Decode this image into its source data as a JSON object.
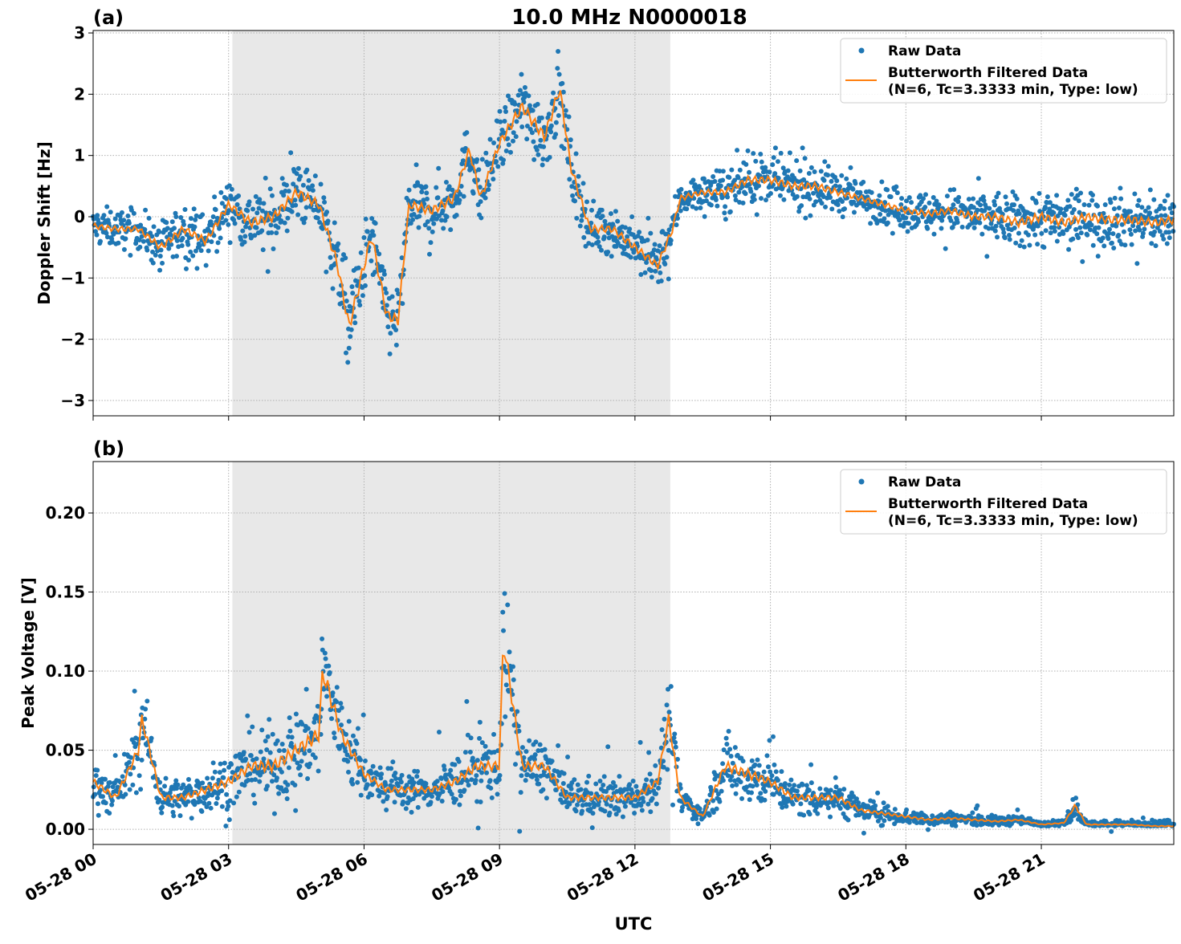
{
  "title": "10.0 MHz N0000018",
  "xlabel": "UTC",
  "x_tick_labels": [
    "05-28 00",
    "05-28 03",
    "05-28 06",
    "05-28 09",
    "05-28 12",
    "05-28 15",
    "05-28 18",
    "05-28 21"
  ],
  "shaded_interval": [
    "03:05",
    "12:47"
  ],
  "colors": {
    "raw": "#1f77b4",
    "filtered": "#ff7f0e",
    "shade": "#e8e8e8"
  },
  "legend": {
    "raw": "Raw Data",
    "filtered_line1": "Butterworth Filtered Data",
    "filtered_line2": "(N=6, Tc=3.3333 min, Type: low)",
    "placement": "upper-right"
  },
  "chart_data": [
    {
      "type": "scatter+line",
      "panel_label": "(a)",
      "ylabel": "Doppler Shift [Hz]",
      "xlim": [
        "00:00",
        "23:56"
      ],
      "ylim": [
        -3.25,
        3.04
      ],
      "y_ticks": [
        -3,
        -2,
        -1,
        0,
        1,
        2,
        3
      ],
      "y_tick_labels": [
        "−3",
        "−2",
        "−1",
        "0",
        "1",
        "2",
        "3"
      ],
      "grid": true,
      "x": [
        "00:00",
        "00:30",
        "01:00",
        "01:30",
        "02:00",
        "02:30",
        "03:00",
        "03:30",
        "04:00",
        "04:30",
        "05:00",
        "05:25",
        "05:40",
        "06:10",
        "06:30",
        "06:45",
        "07:00",
        "07:30",
        "08:00",
        "08:20",
        "08:35",
        "09:00",
        "09:30",
        "10:00",
        "10:20",
        "10:35",
        "11:00",
        "11:30",
        "12:00",
        "12:30",
        "12:50",
        "13:00",
        "13:30",
        "14:00",
        "14:30",
        "15:00",
        "15:30",
        "16:00",
        "16:30",
        "17:00",
        "17:30",
        "18:00",
        "18:30",
        "19:00",
        "19:30",
        "20:00",
        "20:30",
        "21:00",
        "21:30",
        "22:00",
        "22:30",
        "23:00",
        "23:30",
        "23:56"
      ],
      "filtered": [
        -0.15,
        -0.2,
        -0.2,
        -0.5,
        -0.2,
        -0.4,
        0.2,
        -0.1,
        0.0,
        0.4,
        0.2,
        -0.8,
        -1.8,
        -0.3,
        -1.6,
        -1.7,
        0.2,
        0.1,
        0.3,
        1.1,
        0.3,
        1.2,
        1.8,
        1.3,
        2.1,
        0.8,
        -0.2,
        -0.2,
        -0.5,
        -0.8,
        -0.2,
        0.3,
        0.4,
        0.4,
        0.6,
        0.6,
        0.5,
        0.5,
        0.4,
        0.3,
        0.2,
        0.1,
        0.05,
        0.1,
        0.0,
        0.0,
        -0.1,
        0.0,
        -0.1,
        0.0,
        -0.05,
        -0.05,
        -0.1,
        -0.05
      ],
      "raw_spread": [
        0.3,
        0.3,
        0.3,
        0.4,
        0.4,
        0.4,
        0.4,
        0.5,
        0.5,
        0.5,
        0.5,
        0.6,
        0.7,
        0.6,
        0.6,
        0.6,
        0.5,
        0.5,
        0.5,
        0.5,
        0.5,
        0.5,
        0.6,
        0.6,
        0.6,
        0.5,
        0.4,
        0.4,
        0.4,
        0.4,
        0.4,
        0.3,
        0.3,
        0.35,
        0.4,
        0.4,
        0.4,
        0.4,
        0.35,
        0.3,
        0.3,
        0.3,
        0.35,
        0.35,
        0.4,
        0.4,
        0.45,
        0.5,
        0.45,
        0.45,
        0.45,
        0.45,
        0.45,
        0.45
      ]
    },
    {
      "type": "scatter+line",
      "panel_label": "(b)",
      "ylabel": "Peak Voltage [V]",
      "xlim": [
        "00:00",
        "23:56"
      ],
      "ylim": [
        -0.0096,
        0.2325
      ],
      "y_ticks": [
        0,
        0.05,
        0.1,
        0.15,
        0.2
      ],
      "y_tick_labels": [
        "0.00",
        "0.05",
        "0.10",
        "0.15",
        "0.20"
      ],
      "grid": true,
      "x": [
        "00:00",
        "00:30",
        "01:00",
        "01:05",
        "01:30",
        "02:00",
        "02:30",
        "03:00",
        "03:30",
        "04:00",
        "04:30",
        "05:00",
        "05:05",
        "05:30",
        "06:00",
        "06:30",
        "07:00",
        "07:30",
        "08:00",
        "08:30",
        "09:00",
        "09:05",
        "09:30",
        "10:00",
        "10:30",
        "11:00",
        "11:30",
        "12:00",
        "12:30",
        "12:45",
        "13:00",
        "13:30",
        "14:00",
        "14:30",
        "15:00",
        "15:30",
        "16:00",
        "16:30",
        "17:00",
        "17:30",
        "18:00",
        "18:30",
        "19:00",
        "19:30",
        "20:00",
        "20:30",
        "21:00",
        "21:30",
        "21:45",
        "22:00",
        "22:30",
        "23:00",
        "23:30",
        "23:56"
      ],
      "filtered": [
        0.03,
        0.02,
        0.05,
        0.07,
        0.02,
        0.02,
        0.025,
        0.03,
        0.04,
        0.04,
        0.05,
        0.06,
        0.1,
        0.06,
        0.035,
        0.025,
        0.025,
        0.025,
        0.03,
        0.04,
        0.04,
        0.12,
        0.04,
        0.04,
        0.02,
        0.02,
        0.02,
        0.02,
        0.03,
        0.07,
        0.02,
        0.008,
        0.04,
        0.035,
        0.03,
        0.02,
        0.02,
        0.02,
        0.012,
        0.01,
        0.008,
        0.006,
        0.007,
        0.006,
        0.005,
        0.006,
        0.003,
        0.004,
        0.015,
        0.003,
        0.003,
        0.003,
        0.002,
        0.002
      ],
      "raw_spread": [
        0.015,
        0.012,
        0.02,
        0.025,
        0.012,
        0.012,
        0.015,
        0.018,
        0.02,
        0.025,
        0.025,
        0.03,
        0.04,
        0.025,
        0.015,
        0.012,
        0.012,
        0.012,
        0.015,
        0.02,
        0.02,
        0.04,
        0.018,
        0.018,
        0.012,
        0.012,
        0.012,
        0.012,
        0.015,
        0.025,
        0.01,
        0.004,
        0.02,
        0.02,
        0.015,
        0.012,
        0.012,
        0.012,
        0.007,
        0.006,
        0.005,
        0.004,
        0.004,
        0.004,
        0.003,
        0.003,
        0.002,
        0.002,
        0.008,
        0.002,
        0.002,
        0.002,
        0.002,
        0.002
      ]
    }
  ]
}
